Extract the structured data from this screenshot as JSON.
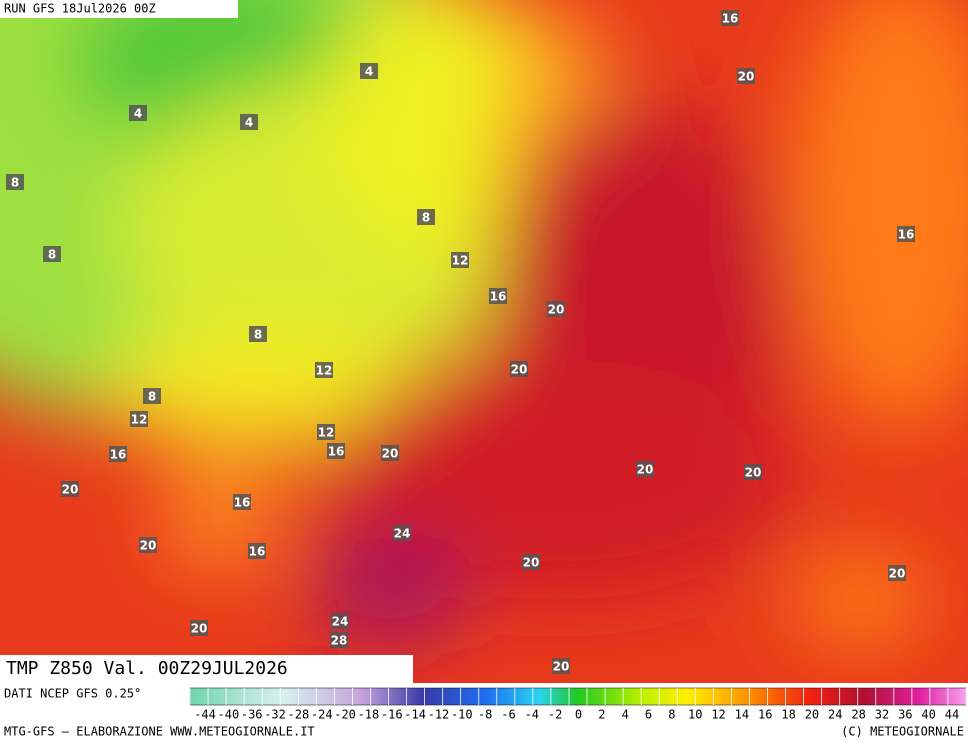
{
  "header": {
    "run": "RUN GFS 18Jul2026 00Z"
  },
  "map": {
    "field_label": "TMP Z850 Val. 00Z29JUL2026",
    "contour_labels": [
      16,
      4,
      20,
      4,
      4,
      8,
      8,
      16,
      8,
      12,
      16,
      20,
      8,
      12,
      20,
      8,
      12,
      12,
      16,
      16,
      20,
      20,
      20,
      20,
      16,
      24,
      20,
      16,
      20,
      20,
      20,
      24,
      28,
      20
    ]
  },
  "footer": {
    "source": "DATI NCEP GFS 0.25°",
    "credit": "MTG-GFS — ELABORAZIONE WWW.METEOGIORNALE.IT",
    "copyright": "(C) METEOGIORNALE"
  },
  "colorbar": {
    "labels": [
      -44,
      -40,
      -36,
      -32,
      -28,
      -24,
      -20,
      -18,
      -16,
      -14,
      -12,
      -10,
      -8,
      -6,
      -4,
      -2,
      0,
      2,
      4,
      6,
      8,
      10,
      12,
      14,
      16,
      18,
      20,
      24,
      28,
      32,
      36,
      40,
      44
    ]
  }
}
